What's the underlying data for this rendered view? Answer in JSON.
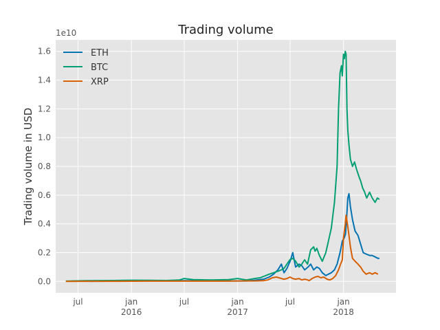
{
  "chart_data": {
    "type": "line",
    "title": "Trading volume",
    "xlabel": "",
    "ylabel": "Trading volume in USD",
    "y_offset_label": "1e10",
    "ylim": [
      -0.08,
      1.68
    ],
    "xlim": [
      "2015-04-15",
      "2018-07-01"
    ],
    "y_ticks": [
      0.0,
      0.2,
      0.4,
      0.6,
      0.8,
      1.0,
      1.2,
      1.4,
      1.6
    ],
    "y_tick_labels": [
      "0.0",
      "0.2",
      "0.4",
      "0.6",
      "0.8",
      "1.0",
      "1.2",
      "1.4",
      "1.6"
    ],
    "x_ticks": [
      {
        "date": "2015-07-01",
        "label": "jul",
        "year": ""
      },
      {
        "date": "2016-01-01",
        "label": "jan",
        "year": "2016"
      },
      {
        "date": "2016-07-01",
        "label": "jul",
        "year": ""
      },
      {
        "date": "2017-01-01",
        "label": "jan",
        "year": "2017"
      },
      {
        "date": "2017-07-01",
        "label": "jul",
        "year": ""
      },
      {
        "date": "2018-01-01",
        "label": "jan",
        "year": "2018"
      }
    ],
    "grid": true,
    "legend_position": "top-left",
    "series": [
      {
        "name": "ETH",
        "color": "#0072b2",
        "x": [
          "2015-08-10",
          "2015-12-01",
          "2016-03-01",
          "2016-06-15",
          "2016-09-01",
          "2016-12-01",
          "2017-02-01",
          "2017-03-01",
          "2017-04-01",
          "2017-04-20",
          "2017-05-05",
          "2017-05-20",
          "2017-06-01",
          "2017-06-10",
          "2017-06-20",
          "2017-07-01",
          "2017-07-10",
          "2017-07-20",
          "2017-08-01",
          "2017-08-10",
          "2017-08-20",
          "2017-09-01",
          "2017-09-10",
          "2017-09-20",
          "2017-10-01",
          "2017-10-10",
          "2017-10-20",
          "2017-11-01",
          "2017-11-10",
          "2017-11-20",
          "2017-12-01",
          "2017-12-10",
          "2017-12-20",
          "2017-12-28",
          "2018-01-03",
          "2018-01-08",
          "2018-01-12",
          "2018-01-16",
          "2018-01-20",
          "2018-01-25",
          "2018-02-01",
          "2018-02-10",
          "2018-02-20",
          "2018-03-01",
          "2018-03-10",
          "2018-03-20",
          "2018-04-01",
          "2018-04-10",
          "2018-04-20",
          "2018-04-30",
          "2018-05-05"
        ],
        "values": [
          0.001,
          0.002,
          0.004,
          0.005,
          0.004,
          0.003,
          0.003,
          0.008,
          0.015,
          0.03,
          0.05,
          0.08,
          0.12,
          0.06,
          0.09,
          0.14,
          0.2,
          0.1,
          0.12,
          0.11,
          0.08,
          0.1,
          0.12,
          0.08,
          0.1,
          0.09,
          0.06,
          0.04,
          0.05,
          0.06,
          0.08,
          0.12,
          0.2,
          0.28,
          0.3,
          0.33,
          0.45,
          0.58,
          0.61,
          0.52,
          0.43,
          0.35,
          0.32,
          0.26,
          0.2,
          0.19,
          0.18,
          0.18,
          0.17,
          0.16,
          0.16
        ]
      },
      {
        "name": "BTC",
        "color": "#009e73",
        "x": [
          "2015-05-20",
          "2015-08-01",
          "2015-11-01",
          "2016-01-01",
          "2016-03-01",
          "2016-05-01",
          "2016-06-15",
          "2016-07-01",
          "2016-08-01",
          "2016-10-01",
          "2016-12-01",
          "2017-01-01",
          "2017-01-15",
          "2017-02-01",
          "2017-03-01",
          "2017-03-20",
          "2017-04-01",
          "2017-04-20",
          "2017-05-05",
          "2017-05-20",
          "2017-06-01",
          "2017-06-10",
          "2017-06-20",
          "2017-06-30",
          "2017-07-10",
          "2017-07-20",
          "2017-08-01",
          "2017-08-10",
          "2017-08-20",
          "2017-08-30",
          "2017-09-10",
          "2017-09-20",
          "2017-09-25",
          "2017-10-01",
          "2017-10-10",
          "2017-10-20",
          "2017-11-01",
          "2017-11-10",
          "2017-11-20",
          "2017-12-01",
          "2017-12-10",
          "2017-12-15",
          "2017-12-20",
          "2017-12-25",
          "2017-12-28",
          "2018-01-01",
          "2018-01-04",
          "2018-01-07",
          "2018-01-10",
          "2018-01-13",
          "2018-01-16",
          "2018-01-20",
          "2018-01-25",
          "2018-02-01",
          "2018-02-08",
          "2018-02-15",
          "2018-02-20",
          "2018-02-25",
          "2018-03-01",
          "2018-03-08",
          "2018-03-15",
          "2018-03-22",
          "2018-04-01",
          "2018-04-10",
          "2018-04-20",
          "2018-04-28",
          "2018-05-05"
        ],
        "values": [
          0.002,
          0.005,
          0.006,
          0.008,
          0.007,
          0.006,
          0.01,
          0.02,
          0.012,
          0.01,
          0.012,
          0.02,
          0.015,
          0.01,
          0.02,
          0.025,
          0.035,
          0.05,
          0.06,
          0.07,
          0.08,
          0.09,
          0.12,
          0.15,
          0.16,
          0.14,
          0.1,
          0.12,
          0.15,
          0.12,
          0.22,
          0.24,
          0.21,
          0.23,
          0.18,
          0.14,
          0.2,
          0.28,
          0.37,
          0.55,
          0.8,
          1.2,
          1.45,
          1.5,
          1.43,
          1.58,
          1.55,
          1.6,
          1.58,
          1.2,
          1.05,
          0.95,
          0.85,
          0.8,
          0.83,
          0.78,
          0.75,
          0.72,
          0.7,
          0.65,
          0.62,
          0.58,
          0.62,
          0.58,
          0.55,
          0.58,
          0.57
        ]
      },
      {
        "name": "XRP",
        "color": "#d55e00",
        "x": [
          "2015-05-20",
          "2015-08-01",
          "2015-11-01",
          "2016-03-01",
          "2016-07-01",
          "2016-11-01",
          "2017-02-01",
          "2017-03-01",
          "2017-04-01",
          "2017-04-15",
          "2017-05-01",
          "2017-05-15",
          "2017-06-01",
          "2017-06-10",
          "2017-06-20",
          "2017-07-01",
          "2017-07-10",
          "2017-07-20",
          "2017-08-01",
          "2017-08-10",
          "2017-08-20",
          "2017-08-28",
          "2017-09-05",
          "2017-09-15",
          "2017-09-25",
          "2017-10-05",
          "2017-10-15",
          "2017-10-25",
          "2017-11-05",
          "2017-11-15",
          "2017-11-25",
          "2017-12-05",
          "2017-12-15",
          "2017-12-22",
          "2017-12-28",
          "2018-01-01",
          "2018-01-04",
          "2018-01-07",
          "2018-01-10",
          "2018-01-13",
          "2018-01-16",
          "2018-01-20",
          "2018-01-25",
          "2018-02-01",
          "2018-02-10",
          "2018-02-20",
          "2018-03-01",
          "2018-03-10",
          "2018-03-20",
          "2018-04-01",
          "2018-04-10",
          "2018-04-20",
          "2018-04-30"
        ],
        "values": [
          0.0,
          0.001,
          0.001,
          0.002,
          0.002,
          0.002,
          0.003,
          0.003,
          0.005,
          0.01,
          0.025,
          0.03,
          0.02,
          0.015,
          0.02,
          0.03,
          0.02,
          0.015,
          0.02,
          0.01,
          0.015,
          0.012,
          0.005,
          0.02,
          0.03,
          0.035,
          0.025,
          0.03,
          0.015,
          0.01,
          0.02,
          0.04,
          0.08,
          0.12,
          0.15,
          0.3,
          0.35,
          0.4,
          0.46,
          0.42,
          0.38,
          0.32,
          0.24,
          0.16,
          0.14,
          0.12,
          0.1,
          0.07,
          0.05,
          0.06,
          0.05,
          0.06,
          0.05
        ]
      }
    ]
  }
}
